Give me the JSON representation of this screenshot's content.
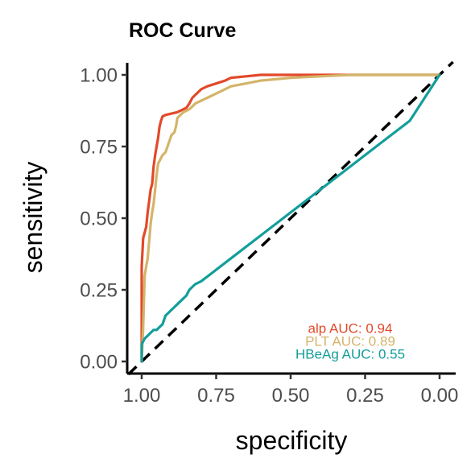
{
  "chart_data": {
    "type": "line",
    "title": "ROC Curve",
    "xlabel": "specificity",
    "ylabel": "sensitivity",
    "xlim": [
      1.0,
      0.0
    ],
    "ylim": [
      0.0,
      1.0
    ],
    "x_reversed": true,
    "xticks": [
      1.0,
      0.75,
      0.5,
      0.25,
      0.0
    ],
    "xtick_labels": [
      "1.00",
      "0.75",
      "0.50",
      "0.25",
      "0.00"
    ],
    "yticks": [
      0.0,
      0.25,
      0.5,
      0.75,
      1.0
    ],
    "ytick_labels": [
      "0.00",
      "0.25",
      "0.50",
      "0.75",
      "1.00"
    ],
    "grid": false,
    "reference_line": {
      "from": [
        1.0,
        0.0
      ],
      "to": [
        0.0,
        1.0
      ],
      "color": "#000000",
      "style": "dashed"
    },
    "series": [
      {
        "label": "alp AUC: 0.94",
        "color": "#E2492A",
        "specificity": [
          1.0,
          1.0,
          0.995,
          0.99,
          0.985,
          0.98,
          0.975,
          0.97,
          0.965,
          0.96,
          0.955,
          0.95,
          0.945,
          0.94,
          0.935,
          0.93,
          0.92,
          0.9,
          0.88,
          0.86,
          0.85,
          0.84,
          0.83,
          0.82,
          0.8,
          0.78,
          0.75,
          0.72,
          0.7,
          0.65,
          0.6,
          0.55,
          0.5,
          0.4,
          0.3,
          0.2,
          0.1,
          0.0
        ],
        "sensitivity": [
          0.0,
          0.33,
          0.43,
          0.45,
          0.47,
          0.52,
          0.56,
          0.6,
          0.62,
          0.68,
          0.72,
          0.75,
          0.78,
          0.82,
          0.84,
          0.855,
          0.86,
          0.865,
          0.87,
          0.88,
          0.885,
          0.9,
          0.92,
          0.93,
          0.95,
          0.96,
          0.97,
          0.98,
          0.99,
          0.995,
          1.0,
          1.0,
          1.0,
          1.0,
          1.0,
          1.0,
          1.0,
          1.0
        ]
      },
      {
        "label": "PLT AUC: 0.89",
        "color": "#D4B46A",
        "specificity": [
          1.0,
          0.995,
          0.99,
          0.98,
          0.975,
          0.97,
          0.965,
          0.96,
          0.955,
          0.95,
          0.945,
          0.94,
          0.935,
          0.93,
          0.92,
          0.91,
          0.9,
          0.89,
          0.885,
          0.88,
          0.87,
          0.86,
          0.85,
          0.84,
          0.83,
          0.82,
          0.8,
          0.78,
          0.76,
          0.74,
          0.72,
          0.7,
          0.65,
          0.6,
          0.5,
          0.4,
          0.3,
          0.2,
          0.1,
          0.0
        ],
        "sensitivity": [
          0.0,
          0.12,
          0.3,
          0.36,
          0.42,
          0.48,
          0.52,
          0.55,
          0.6,
          0.65,
          0.69,
          0.7,
          0.71,
          0.72,
          0.73,
          0.76,
          0.79,
          0.8,
          0.82,
          0.85,
          0.86,
          0.87,
          0.875,
          0.88,
          0.89,
          0.9,
          0.91,
          0.92,
          0.93,
          0.94,
          0.95,
          0.96,
          0.97,
          0.98,
          0.99,
          0.995,
          1.0,
          1.0,
          1.0,
          1.0
        ]
      },
      {
        "label": "HBeAg AUC: 0.55",
        "color": "#139E9B",
        "specificity": [
          1.0,
          1.0,
          0.99,
          0.98,
          0.97,
          0.96,
          0.95,
          0.94,
          0.93,
          0.92,
          0.91,
          0.9,
          0.89,
          0.88,
          0.87,
          0.86,
          0.85,
          0.84,
          0.83,
          0.82,
          0.8,
          0.7,
          0.6,
          0.5,
          0.4,
          0.3,
          0.2,
          0.1,
          0.0
        ],
        "sensitivity": [
          0.0,
          0.06,
          0.08,
          0.09,
          0.1,
          0.11,
          0.11,
          0.12,
          0.13,
          0.16,
          0.17,
          0.18,
          0.19,
          0.2,
          0.21,
          0.22,
          0.23,
          0.25,
          0.26,
          0.27,
          0.28,
          0.36,
          0.44,
          0.52,
          0.6,
          0.68,
          0.76,
          0.84,
          1.0
        ]
      }
    ],
    "annotations": [
      {
        "text": "alp AUC: 0.94",
        "color": "#E2492A",
        "x": 0.3,
        "y": 0.1
      },
      {
        "text": "PLT AUC: 0.89",
        "color": "#D4B46A",
        "x": 0.3,
        "y": 0.055
      },
      {
        "text": "HBeAg AUC: 0.55",
        "color": "#139E9B",
        "x": 0.3,
        "y": 0.01
      }
    ]
  }
}
